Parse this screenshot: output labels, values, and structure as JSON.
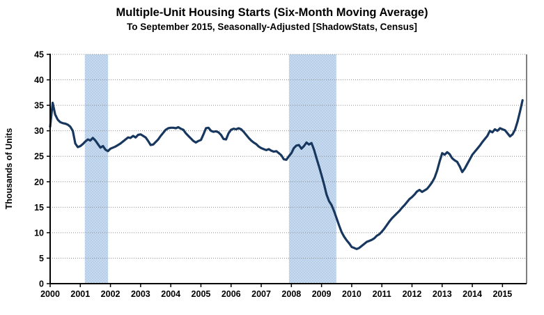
{
  "page": {
    "background": "#ffffff"
  },
  "chart_data": {
    "type": "line",
    "title": "Multiple-Unit Housing Starts (Six-Month Moving Average)",
    "subtitle": "To September 2015, Seasonally-Adjusted [ShadowStats, Census]",
    "ylabel": "Thousands of Units",
    "xlabel": "",
    "ylim": [
      0,
      45
    ],
    "xlim": [
      2000,
      2015.8
    ],
    "y_ticks": [
      0,
      5,
      10,
      15,
      20,
      25,
      30,
      35,
      40,
      45
    ],
    "x_ticks": [
      2000,
      2001,
      2002,
      2003,
      2004,
      2005,
      2006,
      2007,
      2008,
      2009,
      2010,
      2011,
      2012,
      2013,
      2014,
      2015
    ],
    "x_tick_labels": [
      "2000",
      "2001",
      "2002",
      "2003",
      "2004",
      "2005",
      "2006",
      "2007",
      "2008",
      "2009",
      "2010",
      "2011",
      "2012",
      "2013",
      "2014",
      "2015"
    ],
    "grid": "horizontal-dotted",
    "legend": "none",
    "recession_bands": [
      {
        "from": 2001.15,
        "to": 2001.92
      },
      {
        "from": 2007.92,
        "to": 2009.49
      }
    ],
    "series": [
      {
        "name": "Multiple-unit housing starts, six-month moving average",
        "unit": "thousands of units",
        "frequency": "monthly",
        "x_start": "2000-01",
        "x_end": "2015-09",
        "values": [
          30.8,
          35.5,
          33.2,
          32.2,
          31.7,
          31.5,
          31.4,
          31.2,
          30.8,
          30.0,
          27.5,
          26.8,
          27.0,
          27.4,
          27.9,
          28.3,
          28.1,
          28.6,
          28.1,
          27.4,
          26.7,
          27.0,
          26.3,
          26.0,
          26.5,
          26.7,
          26.9,
          27.2,
          27.5,
          27.9,
          28.3,
          28.7,
          28.6,
          29.0,
          28.7,
          29.2,
          29.3,
          29.0,
          28.7,
          28.0,
          27.2,
          27.3,
          27.8,
          28.3,
          29.0,
          29.6,
          30.2,
          30.5,
          30.6,
          30.6,
          30.5,
          30.7,
          30.4,
          30.2,
          29.5,
          29.0,
          28.5,
          28.0,
          27.7,
          28.0,
          28.2,
          29.3,
          30.5,
          30.6,
          30.0,
          29.8,
          29.9,
          29.7,
          29.2,
          28.4,
          28.3,
          29.5,
          30.2,
          30.4,
          30.3,
          30.5,
          30.3,
          29.8,
          29.2,
          28.6,
          28.1,
          27.7,
          27.4,
          26.9,
          26.6,
          26.4,
          26.2,
          26.4,
          26.1,
          25.9,
          26.0,
          25.6,
          25.2,
          24.4,
          24.3,
          25.0,
          25.6,
          26.6,
          27.1,
          27.2,
          26.5,
          27.0,
          27.7,
          27.3,
          27.6,
          26.3,
          24.6,
          23.0,
          21.3,
          19.5,
          17.5,
          16.2,
          15.4,
          14.2,
          12.8,
          11.4,
          10.1,
          9.2,
          8.5,
          7.9,
          7.2,
          7.0,
          6.8,
          7.0,
          7.4,
          7.8,
          8.2,
          8.4,
          8.6,
          8.9,
          9.4,
          9.7,
          10.2,
          10.8,
          11.5,
          12.2,
          12.8,
          13.3,
          13.8,
          14.3,
          14.9,
          15.4,
          16.0,
          16.6,
          17.0,
          17.5,
          18.1,
          18.4,
          18.0,
          18.3,
          18.6,
          19.2,
          19.9,
          20.8,
          22.2,
          24.0,
          25.6,
          25.3,
          25.8,
          25.4,
          24.6,
          24.2,
          23.9,
          23.0,
          21.9,
          22.6,
          23.5,
          24.4,
          25.3,
          25.9,
          26.5,
          27.1,
          27.8,
          28.4,
          29.0,
          30.0,
          29.7,
          30.3,
          30.0,
          30.5,
          30.3,
          30.1,
          29.5,
          28.9,
          29.3,
          30.2,
          31.8,
          33.8,
          36.0
        ]
      }
    ],
    "colors": {
      "line": "#17375E",
      "band": "#B7CEE9",
      "band_dot": "#DCE9F7",
      "grid": "#8C8C8C",
      "axis": "#000000",
      "text": "#000000"
    }
  }
}
